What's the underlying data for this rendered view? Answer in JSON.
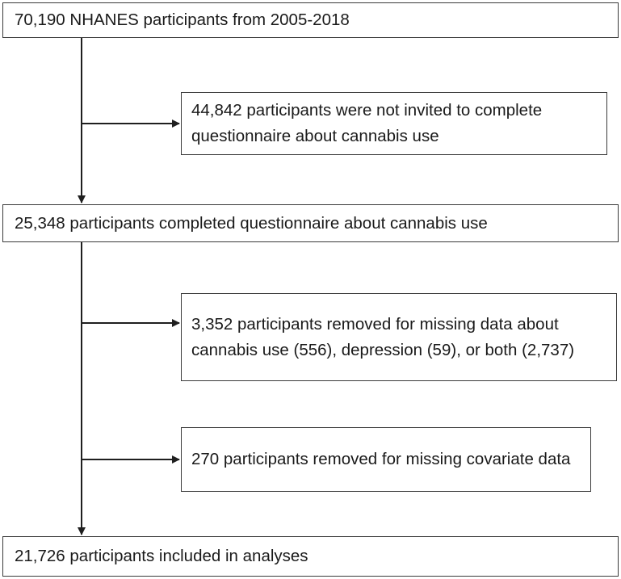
{
  "flowchart": {
    "start_box": "70,190 NHANES participants from 2005-2018",
    "exclusion_1": "44,842 participants were not invited to complete questionnaire about cannabis use",
    "completed_box": "25,348 participants completed questionnaire about cannabis use",
    "exclusion_2": "3,352 participants removed for missing data about cannabis use (556), depression (59), or both (2,737)",
    "exclusion_3": "270 participants removed for missing covariate data",
    "final_box": "21,726 participants included in analyses"
  },
  "colors": {
    "line": "#1f1f1f",
    "border": "#3a3a3a",
    "text": "#1a1a1a"
  }
}
